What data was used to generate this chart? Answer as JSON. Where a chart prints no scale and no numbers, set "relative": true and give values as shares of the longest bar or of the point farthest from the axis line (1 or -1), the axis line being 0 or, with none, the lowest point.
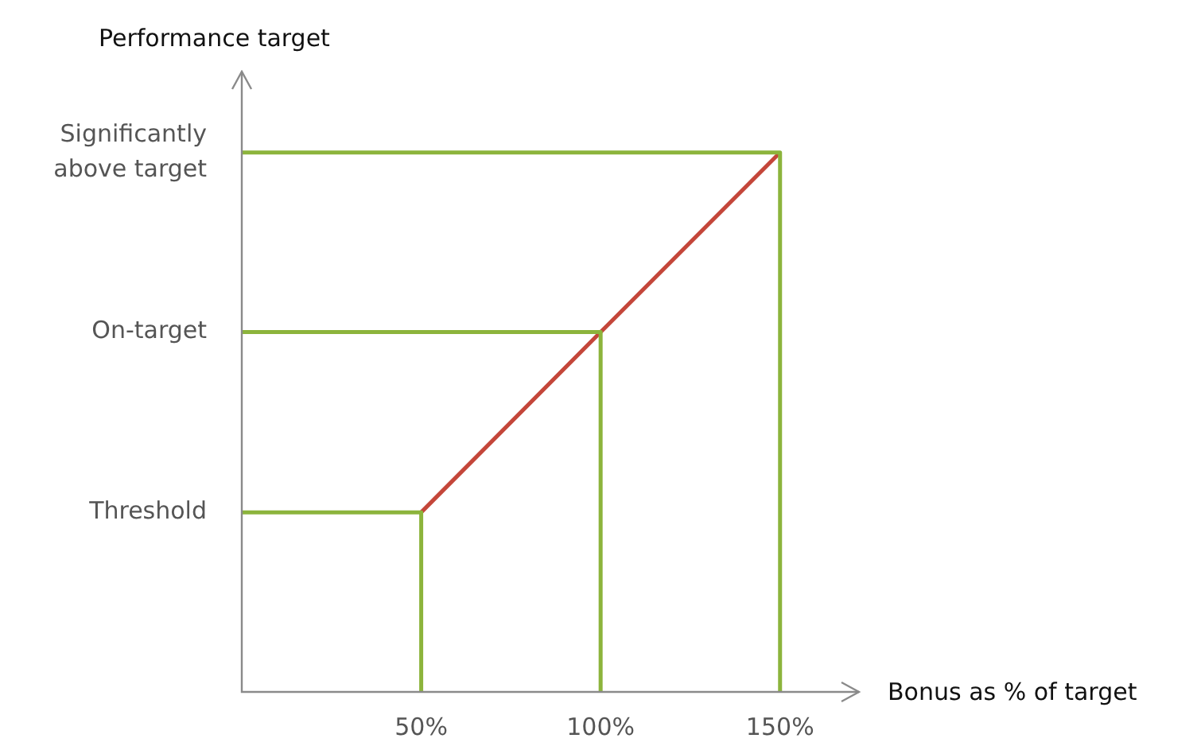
{
  "chart_data": {
    "type": "line",
    "xlabel": "Bonus as % of target",
    "ylabel": "Performance target",
    "relative": true,
    "xlim": [
      0,
      172
    ],
    "xticks": [
      {
        "value": 50,
        "label": "50%"
      },
      {
        "value": 100,
        "label": "100%"
      },
      {
        "value": 150,
        "label": "150%"
      }
    ],
    "grid": false,
    "legend": false,
    "marker": "none",
    "line_style": "solid",
    "series": [
      {
        "name": "Threshold",
        "color": "#8cb43c",
        "x": [
          0,
          50,
          50
        ],
        "values": [
          0.333,
          0.333,
          0
        ]
      },
      {
        "name": "On-target",
        "color": "#8cb43c",
        "x": [
          0,
          100,
          100
        ],
        "values": [
          0.667,
          0.667,
          0
        ]
      },
      {
        "name": "Significantly above target",
        "color": "#8cb43c",
        "x": [
          0,
          150,
          150
        ],
        "values": [
          1,
          1,
          0
        ]
      },
      {
        "color": "#c4463a",
        "x": [
          50,
          100,
          150
        ],
        "values": [
          0.333,
          0.667,
          1
        ]
      }
    ]
  }
}
